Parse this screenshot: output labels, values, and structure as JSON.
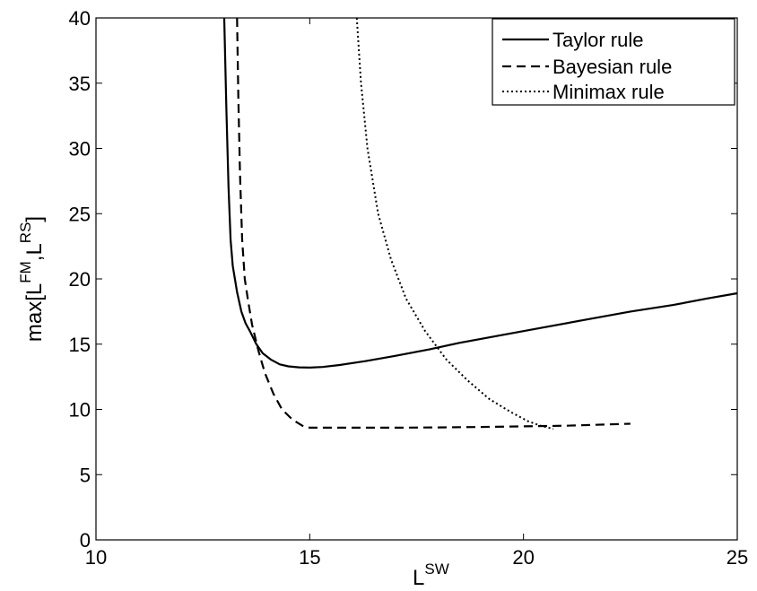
{
  "chart_data": {
    "type": "line",
    "title": "",
    "xlabel": {
      "base": "L",
      "sup": "SW"
    },
    "ylabel": {
      "prefix": "max[L",
      "sup1": "FM",
      "mid": ",L",
      "sup2": "RS",
      "suffix": "]"
    },
    "xlim": [
      10,
      25
    ],
    "ylim": [
      0,
      40
    ],
    "xticks": [
      10,
      15,
      20,
      25
    ],
    "yticks": [
      0,
      5,
      10,
      15,
      20,
      25,
      30,
      35,
      40
    ],
    "grid": false,
    "legend_position": "top-right",
    "series": [
      {
        "name": "Taylor rule",
        "style": "solid",
        "color": "#000000",
        "points": [
          [
            13.0,
            40
          ],
          [
            13.05,
            33
          ],
          [
            13.1,
            27
          ],
          [
            13.15,
            23
          ],
          [
            13.2,
            21
          ],
          [
            13.3,
            19
          ],
          [
            13.4,
            17.5
          ],
          [
            13.5,
            16.6
          ],
          [
            13.6,
            16.0
          ],
          [
            13.75,
            15.0
          ],
          [
            13.9,
            14.3
          ],
          [
            14.1,
            13.8
          ],
          [
            14.3,
            13.45
          ],
          [
            14.5,
            13.3
          ],
          [
            14.75,
            13.22
          ],
          [
            15.0,
            13.2
          ],
          [
            15.3,
            13.25
          ],
          [
            15.7,
            13.4
          ],
          [
            16.3,
            13.7
          ],
          [
            17.0,
            14.1
          ],
          [
            17.8,
            14.6
          ],
          [
            18.5,
            15.1
          ],
          [
            19.5,
            15.7
          ],
          [
            20.5,
            16.3
          ],
          [
            21.5,
            16.9
          ],
          [
            22.5,
            17.5
          ],
          [
            23.5,
            18.0
          ],
          [
            24.3,
            18.5
          ],
          [
            25.0,
            18.9
          ]
        ]
      },
      {
        "name": "Bayesian rule",
        "style": "dashed",
        "color": "#000000",
        "points": [
          [
            13.3,
            40
          ],
          [
            13.33,
            34
          ],
          [
            13.37,
            28
          ],
          [
            13.42,
            23
          ],
          [
            13.48,
            20
          ],
          [
            13.55,
            18.5
          ],
          [
            13.65,
            16.5
          ],
          [
            13.8,
            14.5
          ],
          [
            13.95,
            12.8
          ],
          [
            14.15,
            11.2
          ],
          [
            14.35,
            10.0
          ],
          [
            14.6,
            9.2
          ],
          [
            14.85,
            8.7
          ],
          [
            15.0,
            8.6
          ],
          [
            16.0,
            8.6
          ],
          [
            17.0,
            8.6
          ],
          [
            18.0,
            8.62
          ],
          [
            19.0,
            8.65
          ],
          [
            20.0,
            8.7
          ],
          [
            21.0,
            8.75
          ],
          [
            22.0,
            8.85
          ],
          [
            22.5,
            8.9
          ]
        ]
      },
      {
        "name": "Minimax rule",
        "style": "dotted",
        "color": "#000000",
        "points": [
          [
            16.1,
            40
          ],
          [
            16.2,
            35
          ],
          [
            16.35,
            30
          ],
          [
            16.6,
            25
          ],
          [
            16.9,
            21.5
          ],
          [
            17.25,
            18.5
          ],
          [
            17.7,
            16.0
          ],
          [
            18.2,
            13.8
          ],
          [
            18.7,
            12.2
          ],
          [
            19.2,
            10.8
          ],
          [
            19.7,
            9.8
          ],
          [
            20.1,
            9.1
          ],
          [
            20.4,
            8.75
          ],
          [
            20.7,
            8.5
          ]
        ]
      }
    ]
  }
}
